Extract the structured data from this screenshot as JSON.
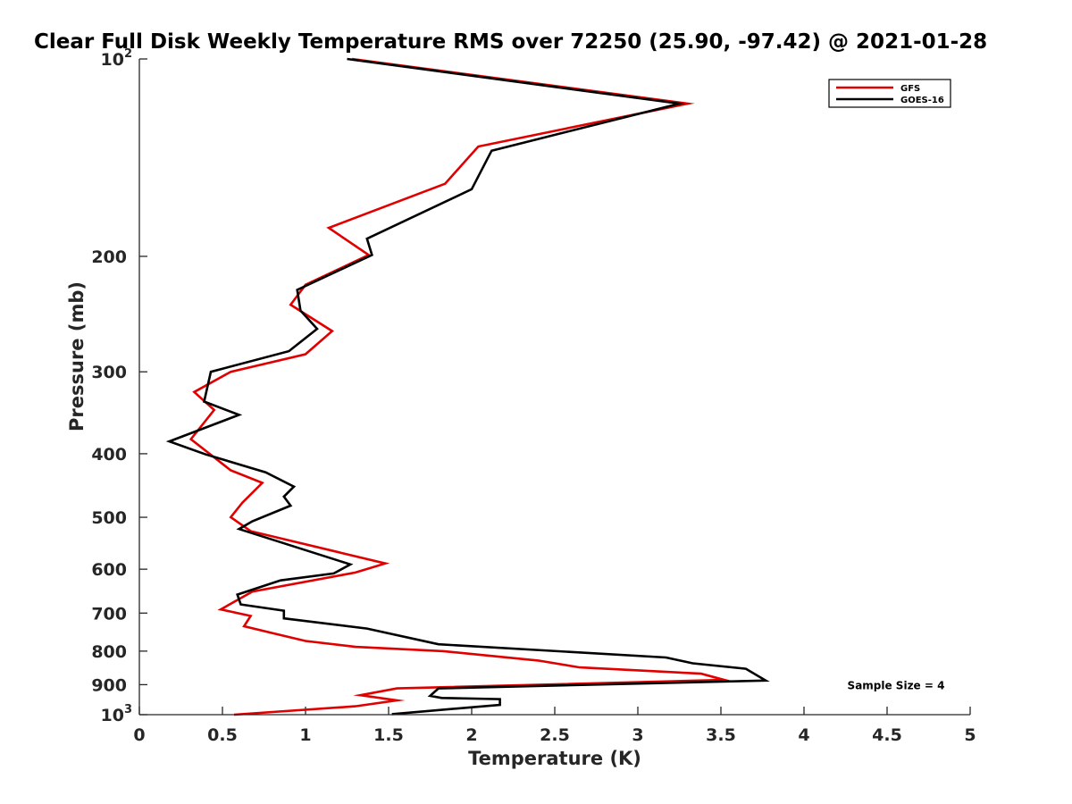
{
  "chart_data": {
    "type": "line",
    "title": "Clear Full Disk Weekly Temperature RMS over 72250 (25.90, -97.42) @ 2021-01-28",
    "xlabel": "Temperature (K)",
    "ylabel": "Pressure (mb)",
    "xlim": [
      0,
      5
    ],
    "ylim": [
      100,
      1000
    ],
    "y_scale": "log",
    "y_reversed": true,
    "grid": false,
    "legend_position": "top-right",
    "x_ticks": [
      0,
      0.5,
      1,
      1.5,
      2,
      2.5,
      3,
      3.5,
      4,
      4.5,
      5
    ],
    "x_tick_labels": [
      "0",
      "0.5",
      "1",
      "1.5",
      "2",
      "2.5",
      "3",
      "3.5",
      "4",
      "4.5",
      "5"
    ],
    "y_ticks": [
      {
        "value": 100,
        "label": "10",
        "sup": "2"
      },
      {
        "value": 200,
        "label": "200"
      },
      {
        "value": 300,
        "label": "300"
      },
      {
        "value": 400,
        "label": "400"
      },
      {
        "value": 500,
        "label": "500"
      },
      {
        "value": 600,
        "label": "600"
      },
      {
        "value": 700,
        "label": "700"
      },
      {
        "value": 800,
        "label": "800"
      },
      {
        "value": 900,
        "label": "900"
      },
      {
        "value": 1000,
        "label": "10",
        "sup": "3"
      }
    ],
    "annotation": "Sample Size = 4",
    "series": [
      {
        "name": "GFS",
        "color": "#e00000",
        "points": [
          [
            1.28,
            100
          ],
          [
            3.3,
            117
          ],
          [
            2.04,
            136
          ],
          [
            1.84,
            155
          ],
          [
            1.14,
            181
          ],
          [
            1.38,
            199
          ],
          [
            1.0,
            221
          ],
          [
            0.91,
            237
          ],
          [
            1.16,
            260
          ],
          [
            1.0,
            282
          ],
          [
            0.55,
            300
          ],
          [
            0.33,
            322
          ],
          [
            0.45,
            343
          ],
          [
            0.31,
            380
          ],
          [
            0.55,
            424
          ],
          [
            0.74,
            443
          ],
          [
            0.62,
            475
          ],
          [
            0.55,
            500
          ],
          [
            0.67,
            525
          ],
          [
            1.48,
            588
          ],
          [
            1.3,
            607
          ],
          [
            0.68,
            649
          ],
          [
            0.49,
            691
          ],
          [
            0.67,
            707
          ],
          [
            0.63,
            733
          ],
          [
            0.83,
            754
          ],
          [
            1.0,
            772
          ],
          [
            1.3,
            788
          ],
          [
            1.83,
            800
          ],
          [
            2.4,
            827
          ],
          [
            2.65,
            847
          ],
          [
            3.38,
            866
          ],
          [
            3.52,
            885
          ],
          [
            1.55,
            912
          ],
          [
            1.33,
            934
          ],
          [
            1.55,
            951
          ],
          [
            1.3,
            971
          ],
          [
            0.57,
            1000
          ]
        ]
      },
      {
        "name": "GOES-16",
        "color": "#000000",
        "points": [
          [
            1.25,
            100
          ],
          [
            3.25,
            117
          ],
          [
            2.12,
            138
          ],
          [
            2.0,
            158
          ],
          [
            1.37,
            188
          ],
          [
            1.4,
            199
          ],
          [
            0.95,
            225
          ],
          [
            0.97,
            242
          ],
          [
            1.07,
            258
          ],
          [
            0.9,
            279
          ],
          [
            0.43,
            300
          ],
          [
            0.39,
            333
          ],
          [
            0.6,
            349
          ],
          [
            0.18,
            383
          ],
          [
            0.4,
            401
          ],
          [
            0.76,
            427
          ],
          [
            0.93,
            449
          ],
          [
            0.87,
            465
          ],
          [
            0.91,
            480
          ],
          [
            0.68,
            507
          ],
          [
            0.6,
            521
          ],
          [
            1.27,
            590
          ],
          [
            1.17,
            609
          ],
          [
            0.85,
            624
          ],
          [
            0.59,
            656
          ],
          [
            0.61,
            679
          ],
          [
            0.87,
            694
          ],
          [
            0.87,
            713
          ],
          [
            1.37,
            739
          ],
          [
            1.8,
            781
          ],
          [
            3.17,
            818
          ],
          [
            3.33,
            835
          ],
          [
            3.65,
            851
          ],
          [
            3.77,
            887
          ],
          [
            1.8,
            912
          ],
          [
            1.75,
            936
          ],
          [
            1.82,
            943
          ],
          [
            2.17,
            947
          ],
          [
            2.17,
            966
          ],
          [
            1.52,
            998
          ]
        ]
      }
    ]
  }
}
